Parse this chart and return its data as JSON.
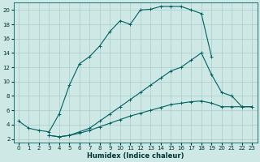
{
  "xlabel": "Humidex (Indice chaleur)",
  "bg_color": "#cde8e5",
  "grid_color": "#aacccc",
  "line_color": "#006060",
  "xlim": [
    -0.5,
    23.5
  ],
  "ylim": [
    1.5,
    21.0
  ],
  "xticks": [
    0,
    1,
    2,
    3,
    4,
    5,
    6,
    7,
    8,
    9,
    10,
    11,
    12,
    13,
    14,
    15,
    16,
    17,
    18,
    19,
    20,
    21,
    22,
    23
  ],
  "yticks": [
    2,
    4,
    6,
    8,
    10,
    12,
    14,
    16,
    18,
    20
  ],
  "line1_x": [
    0,
    1,
    2,
    3,
    4,
    5,
    6,
    7,
    8,
    9,
    10,
    11,
    12,
    13,
    14,
    15,
    16,
    17,
    18,
    19
  ],
  "line1_y": [
    4.5,
    3.5,
    3.2,
    3.0,
    5.5,
    9.5,
    12.5,
    13.5,
    15.0,
    17.0,
    18.5,
    18.0,
    20.0,
    20.1,
    20.5,
    20.5,
    20.5,
    20.0,
    19.5,
    13.5
  ],
  "line2_x": [
    3,
    4,
    5,
    6,
    7,
    8,
    9,
    10,
    11,
    12,
    13,
    14,
    15,
    16,
    17,
    18,
    19,
    20,
    21,
    22,
    23
  ],
  "line2_y": [
    2.5,
    2.3,
    2.5,
    3.0,
    3.5,
    4.5,
    5.5,
    6.5,
    7.5,
    8.5,
    9.5,
    10.5,
    11.5,
    12.0,
    13.0,
    14.0,
    11.0,
    8.5,
    8.0,
    6.5,
    6.5
  ],
  "line3_x": [
    3,
    4,
    5,
    6,
    7,
    8,
    9,
    10,
    11,
    12,
    13,
    14,
    15,
    16,
    17,
    18,
    19,
    20,
    21,
    22,
    23
  ],
  "line3_y": [
    2.5,
    2.3,
    2.5,
    2.8,
    3.2,
    3.7,
    4.2,
    4.7,
    5.2,
    5.6,
    6.0,
    6.4,
    6.8,
    7.0,
    7.2,
    7.3,
    7.0,
    6.5,
    6.5,
    6.5,
    6.5
  ],
  "marker": "+"
}
